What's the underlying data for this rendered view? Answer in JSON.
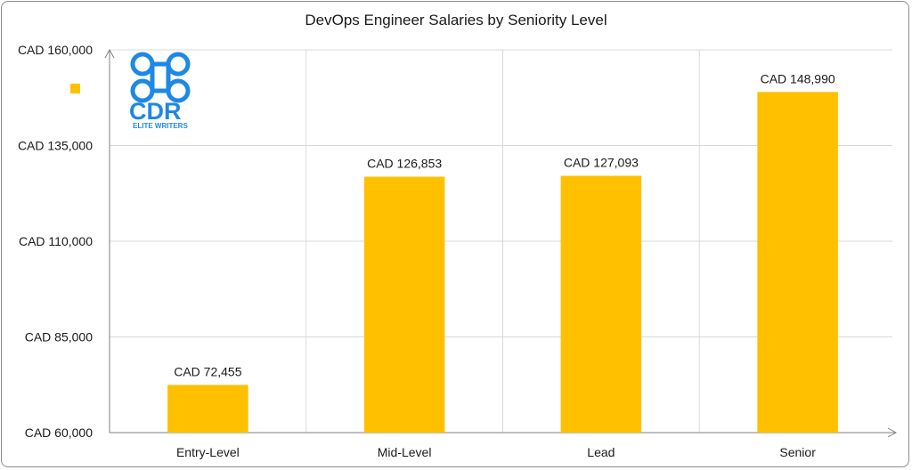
{
  "chart_data": {
    "type": "bar",
    "title": "DevOps Engineer Salaries by Seniority Level",
    "xlabel": "",
    "ylabel": "",
    "categories": [
      "Entry-Level",
      "Mid-Level",
      "Lead",
      "Senior"
    ],
    "values": [
      72455,
      126853,
      127093,
      148990
    ],
    "data_labels": [
      "CAD 72,455",
      "CAD 126,853",
      "CAD 127,093",
      "CAD 148,990"
    ],
    "ylim": [
      60000,
      160000
    ],
    "yticks": [
      60000,
      85000,
      110000,
      135000,
      160000
    ],
    "ytick_labels": [
      "CAD 60,000",
      "CAD 85,000",
      "CAD 110,000",
      "CAD 135,000",
      "CAD 160,000"
    ],
    "grid": true,
    "bar_color": "#FFC000",
    "legend": {
      "position": "top-left",
      "color": "#FFC000"
    }
  },
  "logo": {
    "letters": "CDR",
    "tagline": "ELITE WRITERS",
    "color": "#1E88E5"
  }
}
